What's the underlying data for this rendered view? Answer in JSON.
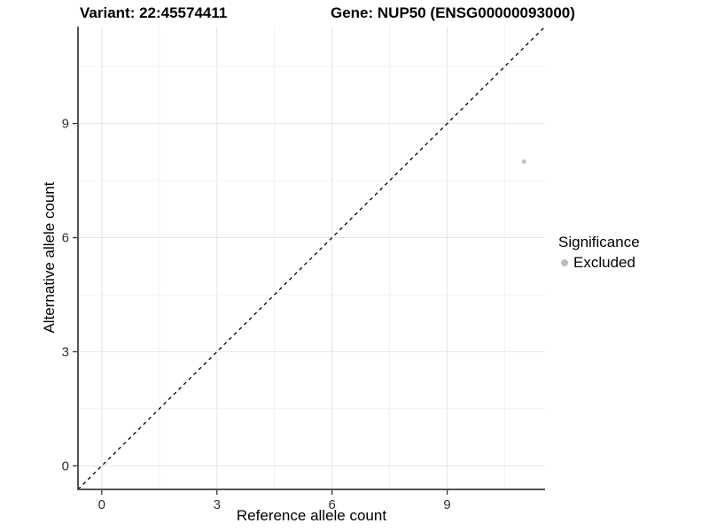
{
  "title": {
    "variant_label": "Variant: 22:45574411",
    "gene_label": "Gene: NUP50 (ENSG00000093000)"
  },
  "chart_data": {
    "type": "scatter",
    "title": "Variant: 22:45574411   Gene: NUP50 (ENSG00000093000)",
    "xlabel": "Reference allele count",
    "ylabel": "Alternative allele count",
    "xlim": [
      -0.62,
      11.55
    ],
    "ylim": [
      -0.62,
      11.55
    ],
    "major_ticks": [
      0,
      3,
      6,
      9
    ],
    "minor_gridlines": [
      1.5,
      4.5,
      7.5,
      10.5
    ],
    "grid": "major and minor, light gray, on white background",
    "identity_line": {
      "equation": "y = x",
      "style": "dashed",
      "color": "#000000"
    },
    "points": [
      {
        "x": 11,
        "y": 8,
        "significance": "Excluded"
      }
    ],
    "point_color": "#bdbdbd",
    "point_radius_px": 2.4,
    "legend_position": "right-middle"
  },
  "legend": {
    "title": "Significance",
    "items": [
      {
        "label": "Excluded",
        "color": "#bdbdbd"
      }
    ]
  },
  "colors": {
    "background": "#ffffff",
    "axis_line": "#555555",
    "tick_mark": "#333333",
    "tick_label": "#303030",
    "grid_major": "#e4e4e4",
    "grid_minor": "#f1f1f1",
    "title_text": "#000000",
    "point": "#bdbdbd",
    "identity_line": "#000000"
  }
}
